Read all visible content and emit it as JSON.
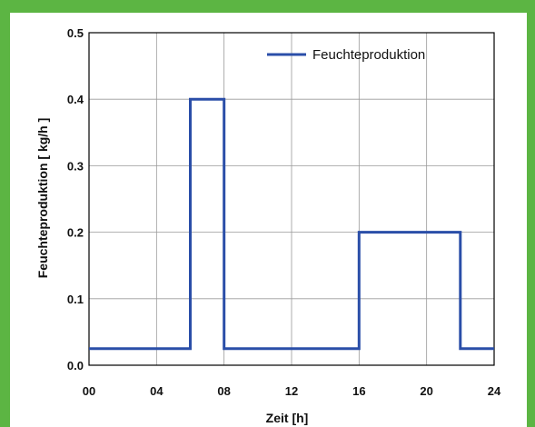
{
  "colors": {
    "frame_border": "#5cb543",
    "series_line": "#2a4ea8",
    "grid": "#9a9a9a",
    "axis": "#000000"
  },
  "chart_data": {
    "type": "line",
    "title": "",
    "xlabel": "Zeit [h]",
    "ylabel": "Feuchteproduktion [ kg/h ]",
    "xlim": [
      0,
      24
    ],
    "ylim": [
      0,
      0.5
    ],
    "grid": true,
    "legend_position": "top-right",
    "x_tick_labels": [
      "00",
      "04",
      "08",
      "12",
      "16",
      "20",
      "24"
    ],
    "x_ticks": [
      0,
      4,
      8,
      12,
      16,
      20,
      24
    ],
    "y_tick_labels": [
      "0.0",
      "0.1",
      "0.2",
      "0.3",
      "0.4",
      "0.5"
    ],
    "y_ticks": [
      0,
      0.1,
      0.2,
      0.3,
      0.4,
      0.5
    ],
    "series": [
      {
        "name": "Feuchteproduktion",
        "step": true,
        "x": [
          0,
          6,
          6,
          8,
          8,
          16,
          16,
          22,
          22,
          24
        ],
        "y": [
          0.025,
          0.025,
          0.4,
          0.4,
          0.025,
          0.025,
          0.2,
          0.2,
          0.025,
          0.025
        ]
      }
    ]
  }
}
